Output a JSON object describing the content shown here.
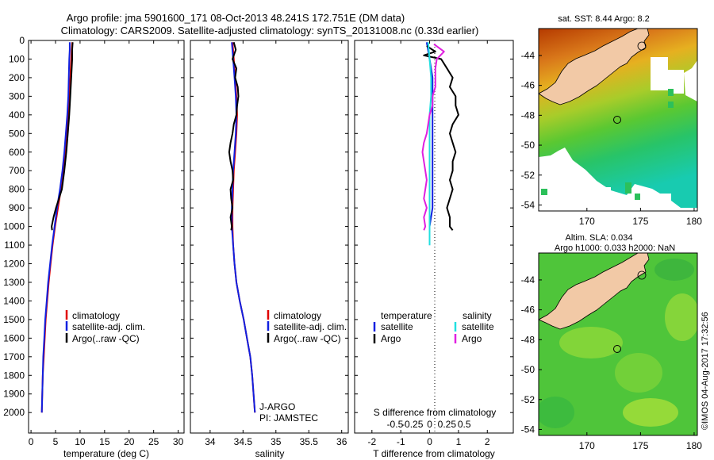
{
  "title": {
    "line1": "Argo profile: jma 5901600_171 08-Oct-2013 48.241S 172.751E (DM data)",
    "line2": "Climatology: CARS2009. Satellite-adjusted climatology: synTS_20131008.nc (0.33d earlier)"
  },
  "colors": {
    "climatology": "#e00000",
    "satellite": "#1020e0",
    "argo": "#000000",
    "satellite_s": "#22e0e0",
    "argo_s": "#e020e0",
    "land": "#f2c9a6"
  },
  "depth_axis": {
    "ticks": [
      0,
      100,
      200,
      300,
      400,
      500,
      600,
      700,
      800,
      900,
      1000,
      1100,
      1200,
      1300,
      1400,
      1500,
      1600,
      1700,
      1800,
      1900,
      2000
    ],
    "tick_labels": [
      "0",
      "100",
      "200",
      "300",
      "400",
      "500",
      "600",
      "700",
      "800",
      "900",
      "1000",
      "1100",
      "1200",
      "1300",
      "1400",
      "1500",
      "1600",
      "1700",
      "1800",
      "1900",
      "2000"
    ],
    "range": [
      0,
      2110
    ]
  },
  "chart_data": [
    {
      "type": "line",
      "id": "temperature",
      "xlabel": "temperature (deg C)",
      "ylabel": "pressure (dbar)",
      "xlim": [
        -0.5,
        31.2
      ],
      "ylim": [
        0,
        2110
      ],
      "xticks": [
        0,
        5,
        10,
        15,
        20,
        25,
        30
      ],
      "xtick_labels": [
        "0",
        "5",
        "10",
        "15",
        "20",
        "25",
        "30"
      ],
      "legend": [
        "climatology",
        "satellite-adj. clim.",
        "Argo(..raw -QC)"
      ],
      "series": [
        {
          "name": "climatology",
          "color": "climatology",
          "depth": [
            10,
            50,
            100,
            200,
            300,
            400,
            500,
            600,
            700,
            800,
            900,
            1000,
            1100,
            1200,
            1300,
            1400,
            1500,
            1600,
            1700,
            1800,
            1900,
            2000
          ],
          "values": [
            8.4,
            8.3,
            8.2,
            8.0,
            7.8,
            7.6,
            7.3,
            7.0,
            6.6,
            6.1,
            5.5,
            4.9,
            4.4,
            4.0,
            3.6,
            3.3,
            3.0,
            2.8,
            2.6,
            2.4,
            2.3,
            2.2
          ]
        },
        {
          "name": "satellite-adj. clim.",
          "color": "satellite",
          "depth": [
            10,
            50,
            100,
            200,
            300,
            400,
            500,
            600,
            700,
            800,
            900,
            1000,
            1100,
            1200,
            1300,
            1400,
            1500,
            1600,
            1700,
            1800,
            1900,
            2000
          ],
          "values": [
            7.9,
            7.9,
            7.8,
            7.7,
            7.6,
            7.4,
            7.1,
            6.8,
            6.4,
            5.9,
            5.3,
            4.8,
            4.3,
            3.9,
            3.5,
            3.2,
            2.9,
            2.7,
            2.5,
            2.4,
            2.3,
            2.2
          ]
        },
        {
          "name": "Argo(..raw -QC)",
          "color": "argo",
          "depth": [
            10,
            50,
            100,
            150,
            200,
            300,
            400,
            500,
            600,
            700,
            800,
            850,
            900,
            950,
            1000,
            1020
          ],
          "values": [
            8.5,
            8.4,
            8.4,
            8.3,
            8.2,
            8.0,
            7.8,
            7.5,
            7.2,
            6.8,
            6.3,
            5.7,
            5.1,
            4.6,
            4.2,
            4.3
          ]
        }
      ]
    },
    {
      "type": "line",
      "id": "salinity",
      "xlabel": "salinity",
      "ylabel": "pressure (dbar)",
      "xlim": [
        33.7,
        36.1
      ],
      "ylim": [
        0,
        2110
      ],
      "xticks": [
        34,
        34.5,
        35,
        35.5,
        36
      ],
      "xtick_labels": [
        "34",
        "34.5",
        "35",
        "35.5",
        "36"
      ],
      "legend": [
        "climatology",
        "satellite-adj. clim.",
        "Argo(..raw -QC)"
      ],
      "annotation": [
        "J-ARGO",
        "PI: JAMSTEC"
      ],
      "series": [
        {
          "name": "climatology",
          "color": "climatology",
          "depth": [
            10,
            100,
            200,
            300,
            400,
            500,
            600,
            700,
            800,
            900,
            1000,
            1100,
            1200,
            1300,
            1400,
            1500,
            1600,
            1700,
            1800,
            1900,
            2000
          ],
          "values": [
            34.34,
            34.36,
            34.38,
            34.4,
            34.41,
            34.4,
            34.38,
            34.36,
            34.35,
            34.34,
            34.34,
            34.35,
            34.37,
            34.4,
            34.45,
            34.51,
            34.56,
            34.61,
            34.64,
            34.66,
            34.68
          ]
        },
        {
          "name": "satellite-adj. clim.",
          "color": "satellite",
          "depth": [
            10,
            100,
            200,
            300,
            400,
            500,
            600,
            700,
            800,
            900,
            1000,
            1100,
            1200,
            1300,
            1400,
            1500,
            1600,
            1700,
            1800,
            1900,
            2000
          ],
          "values": [
            34.33,
            34.35,
            34.37,
            34.39,
            34.4,
            34.39,
            34.37,
            34.35,
            34.34,
            34.33,
            34.33,
            34.35,
            34.37,
            34.4,
            34.45,
            34.51,
            34.56,
            34.61,
            34.64,
            34.66,
            34.68
          ]
        },
        {
          "name": "Argo(..raw -QC)",
          "color": "argo",
          "depth": [
            10,
            50,
            100,
            150,
            200,
            250,
            300,
            350,
            400,
            450,
            500,
            550,
            600,
            650,
            700,
            750,
            800,
            850,
            900,
            950,
            1000,
            1020
          ],
          "values": [
            34.36,
            34.39,
            34.34,
            34.4,
            34.38,
            34.42,
            34.43,
            34.41,
            34.4,
            34.36,
            34.34,
            34.31,
            34.29,
            34.31,
            34.34,
            34.35,
            34.31,
            34.32,
            34.34,
            34.31,
            34.33,
            34.32
          ]
        }
      ]
    },
    {
      "type": "line",
      "id": "difference",
      "xlabel": "T difference from climatology",
      "xlabel_top": "S difference from climatology",
      "ylabel": "pressure (dbar)",
      "xlim": [
        -2.6,
        2.9
      ],
      "ylim": [
        0,
        2110
      ],
      "xticks": [
        -2,
        -1,
        0,
        1,
        2
      ],
      "xtick_labels": [
        "-2",
        "-1",
        "0",
        "1",
        "2"
      ],
      "s_xticks": [
        -0.5,
        -0.25,
        0,
        0.25,
        0.5
      ],
      "s_xtick_labels": [
        "-0.5",
        "-0.25",
        "0",
        "0.25",
        "0.5"
      ],
      "legend_left_title": "temperature",
      "legend_right_title": "salinity",
      "legend": [
        "satellite",
        "Argo",
        "satellite",
        "Argo"
      ],
      "series": [
        {
          "name": "T satellite",
          "color": "satellite",
          "depth": [
            10,
            100,
            200,
            300,
            400,
            500,
            600,
            700,
            800,
            900,
            1000,
            1100
          ],
          "values": [
            -0.1,
            0.0,
            0.1,
            0.1,
            0.1,
            0.1,
            0.1,
            0.1,
            0.1,
            0.1,
            0.0,
            0.0
          ]
        },
        {
          "name": "T Argo",
          "color": "argo",
          "depth": [
            30,
            60,
            80,
            100,
            150,
            200,
            250,
            300,
            350,
            400,
            450,
            500,
            550,
            600,
            650,
            700,
            750,
            800,
            850,
            900,
            950,
            1000,
            1020
          ],
          "values": [
            -0.1,
            0.2,
            -0.2,
            0.4,
            0.6,
            0.8,
            0.7,
            0.9,
            0.9,
            1.0,
            0.8,
            0.7,
            0.8,
            0.9,
            0.8,
            0.8,
            0.7,
            0.8,
            0.7,
            0.6,
            0.7,
            0.7,
            0.8
          ]
        },
        {
          "name": "S satellite",
          "color": "satellite_s",
          "depth": [
            10,
            100,
            200,
            300,
            400,
            500,
            600,
            700,
            800,
            900,
            1000,
            1100
          ],
          "values": [
            -0.01,
            0.0,
            0.01,
            0.01,
            0.0,
            0.0,
            0.0,
            0.0,
            0.0,
            0.0,
            0.0,
            0.0
          ]
        },
        {
          "name": "S Argo",
          "color": "argo_s",
          "depth": [
            20,
            60,
            100,
            150,
            200,
            250,
            300,
            350,
            400,
            450,
            500,
            550,
            600,
            650,
            700,
            750,
            800,
            850,
            900,
            950,
            1000,
            1020
          ],
          "values": [
            0.03,
            0.1,
            0.05,
            0.04,
            0.04,
            0.04,
            0.02,
            0.02,
            0.0,
            -0.01,
            -0.02,
            -0.04,
            -0.05,
            -0.04,
            -0.03,
            -0.02,
            -0.03,
            -0.04,
            -0.02,
            -0.04,
            -0.03,
            -0.04
          ]
        }
      ]
    }
  ],
  "map_sst": {
    "title": "sat. SST: 8.44  Argo: 8.2",
    "xticks": [
      170,
      175,
      180
    ],
    "xtick_labels": [
      "170",
      "175",
      "180"
    ],
    "yticks": [
      -44,
      -46,
      -48,
      -50,
      -52,
      -54
    ],
    "ytick_labels": [
      "-44",
      "-46",
      "-48",
      "-50",
      "-52",
      "-54"
    ],
    "lon_range": [
      165.5,
      180.3
    ],
    "lat_range": [
      -54.4,
      -42.2
    ],
    "float_position": [
      172.75,
      -48.24
    ]
  },
  "map_sla": {
    "title_line1": "Altim. SLA: 0.034",
    "title_line2": "Argo h1000: 0.033 h2000: NaN",
    "xticks": [
      170,
      175,
      180
    ],
    "xtick_labels": [
      "170",
      "175",
      "180"
    ],
    "yticks": [
      -44,
      -46,
      -48,
      -50,
      -52,
      -54
    ],
    "ytick_labels": [
      "-44",
      "-46",
      "-48",
      "-50",
      "-52",
      "-54"
    ],
    "lon_range": [
      165.5,
      180.3
    ],
    "lat_range": [
      -54.4,
      -42.2
    ],
    "float_position": [
      172.75,
      -48.24
    ]
  },
  "credit": "©IMOS 04-Aug-2017 17:32:56"
}
